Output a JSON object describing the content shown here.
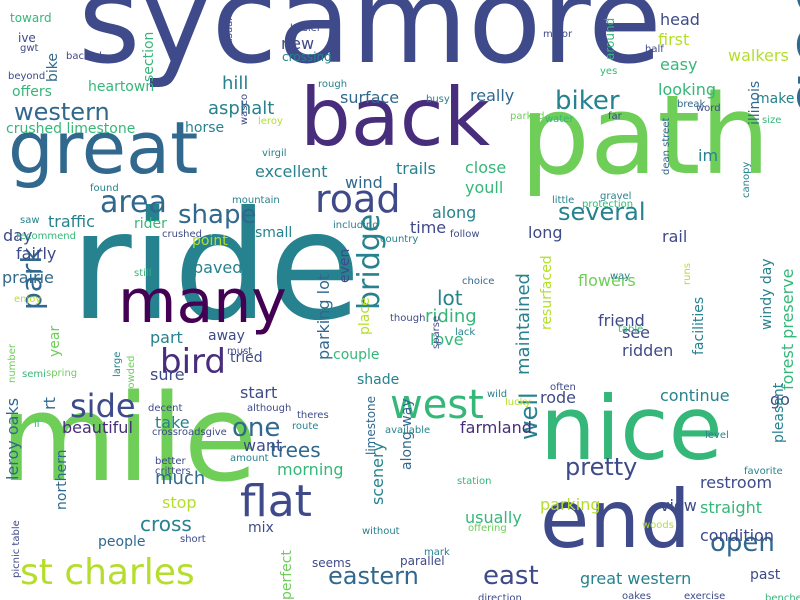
{
  "palette": {
    "navy": "#3e4a89",
    "purple": "#472d7b",
    "blue": "#31688e",
    "teal": "#26828e",
    "green": "#35b779",
    "lime": "#6ece58",
    "yellow": "#b5de2b",
    "dark": "#440154"
  },
  "words": [
    "sycamore",
    "ride",
    "mile",
    "path",
    "great",
    "back",
    "nice",
    "many",
    "end",
    "good",
    "st charles",
    "flat",
    "west",
    "road",
    "bird",
    "side",
    "open",
    "eastern",
    "east",
    "pretty",
    "biker",
    "park",
    "area",
    "shape",
    "several",
    "western",
    "bridge",
    "one",
    "trees",
    "cross",
    "much",
    "well",
    "lot",
    "riding",
    "maintained",
    "crushed limestone",
    "asphalt",
    "surface",
    "really",
    "hill",
    "heartown",
    "offers",
    "bike",
    "toward",
    "ive",
    "gwt",
    "section",
    "head",
    "first",
    "easy",
    "walkers",
    "looking",
    "make",
    "illinois",
    "horse",
    "im",
    "wind",
    "excellent",
    "trails",
    "close",
    "youll",
    "along",
    "time",
    "long",
    "rail",
    "small",
    "traffic",
    "rider",
    "day",
    "fairly",
    "prairie",
    "paved",
    "point",
    "parking lot",
    "even",
    "place",
    "flowers",
    "friend",
    "see",
    "ridden",
    "facilities",
    "windy day",
    "forest preserve",
    "resurfaced",
    "love",
    "couple",
    "part",
    "away",
    "sure",
    "tried",
    "start",
    "shade",
    "rode",
    "continue",
    "go",
    "take",
    "beautiful",
    "farmland",
    "want",
    "morning",
    "stop",
    "mix",
    "people",
    "northern",
    "leroy oaks",
    "year",
    "rt",
    "usually",
    "scenery",
    "along way",
    "view",
    "restroom",
    "straight",
    "condition",
    "past",
    "great western",
    "parking",
    "pleasant",
    "perfect",
    "seems",
    "parallel",
    "limestone",
    "new",
    "crossing",
    "busier",
    "casual",
    "minor",
    "half",
    "yes",
    "around",
    "dean street",
    "protection",
    "water",
    "parked",
    "busy",
    "rough",
    "leroy",
    "virgil",
    "wasco",
    "word",
    "size",
    "canopy",
    "break",
    "far",
    "gravel",
    "little",
    "found",
    "mountain",
    "including",
    "country",
    "follow",
    "choice",
    "way",
    "runs",
    "table",
    "lack",
    "sparse",
    "often",
    "lucky",
    "wild",
    "available",
    "route",
    "theres",
    "level",
    "favorite",
    "station",
    "woods",
    "offering",
    "without",
    "mark",
    "short",
    "benches",
    "exercise",
    "oakes",
    "direction",
    "picnic table",
    "semi",
    "number",
    "spring",
    "crowded",
    "large",
    "still",
    "recommend",
    "saw",
    "enjoy",
    "il",
    "although",
    "decent",
    "crossroadsgive",
    "amount",
    "better",
    "critters",
    "must",
    "though",
    "beyond",
    "backed",
    "crushed"
  ]
}
